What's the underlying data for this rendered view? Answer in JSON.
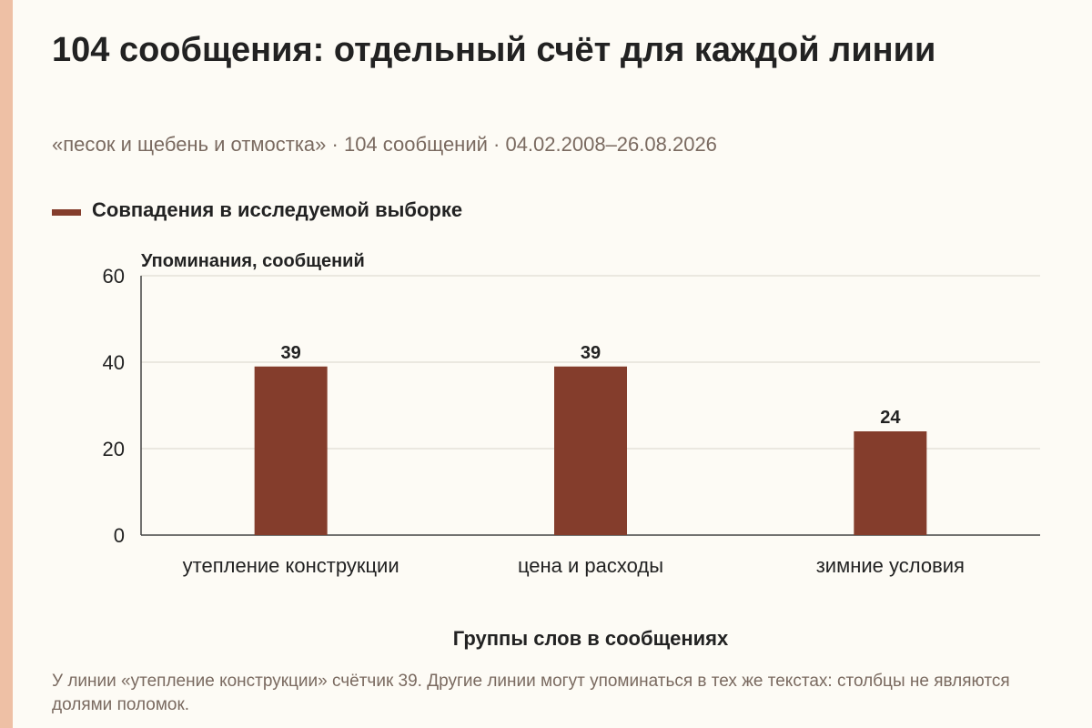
{
  "accent_color": "#843d2c",
  "side_strip_color": "#eec0a5",
  "title": "104 сообщения: отдельный счёт для каждой линии",
  "subtitle": "«песок и щебень и отмостка» · 104 сообщений · 04.02.2008–26.08.2026",
  "footnote": "У линии «утепление конструкции» счётчик 39. Другие линии могут упоминаться в тех же текстах: столбцы не являются долями поломок.",
  "chart_data": {
    "type": "bar",
    "title": "104 сообщения: отдельный счёт для каждой линии",
    "ylabel": "Упоминания, сообщений",
    "xlabel": "Группы слов в сообщениях",
    "categories": [
      "утепление конструкции",
      "цена и расходы",
      "зимние условия"
    ],
    "series": [
      {
        "name": "Совпадения в исследуемой выборке",
        "values": [
          39,
          39,
          24
        ],
        "color": "#843d2c"
      }
    ],
    "ylim": [
      0,
      60
    ],
    "yticks": [
      0,
      20,
      40,
      60
    ],
    "grid": true,
    "legend_position": "top-left",
    "data_labels": true
  }
}
